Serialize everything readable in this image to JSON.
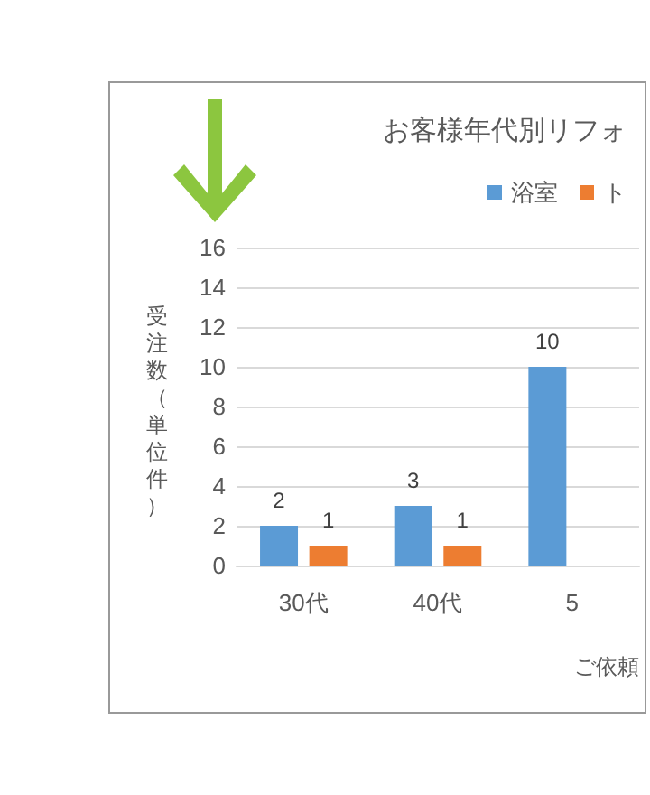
{
  "chart_data": {
    "type": "bar",
    "title": "お客様年代別リフォ",
    "xlabel": "ご依頼",
    "ylabel": "受注数（単位件）",
    "categories": [
      "30代",
      "40代",
      "5"
    ],
    "series": [
      {
        "name": "浴室",
        "color": "#5b9bd5",
        "values": [
          2,
          3,
          10
        ]
      },
      {
        "name": "ト",
        "color": "#ed7d31",
        "values": [
          1,
          1,
          null
        ]
      }
    ],
    "ylim": [
      0,
      16
    ],
    "yticks": [
      0,
      2,
      4,
      6,
      8,
      10,
      12,
      14,
      16
    ],
    "grid": "y",
    "legend": "top right",
    "data_labels": true
  }
}
